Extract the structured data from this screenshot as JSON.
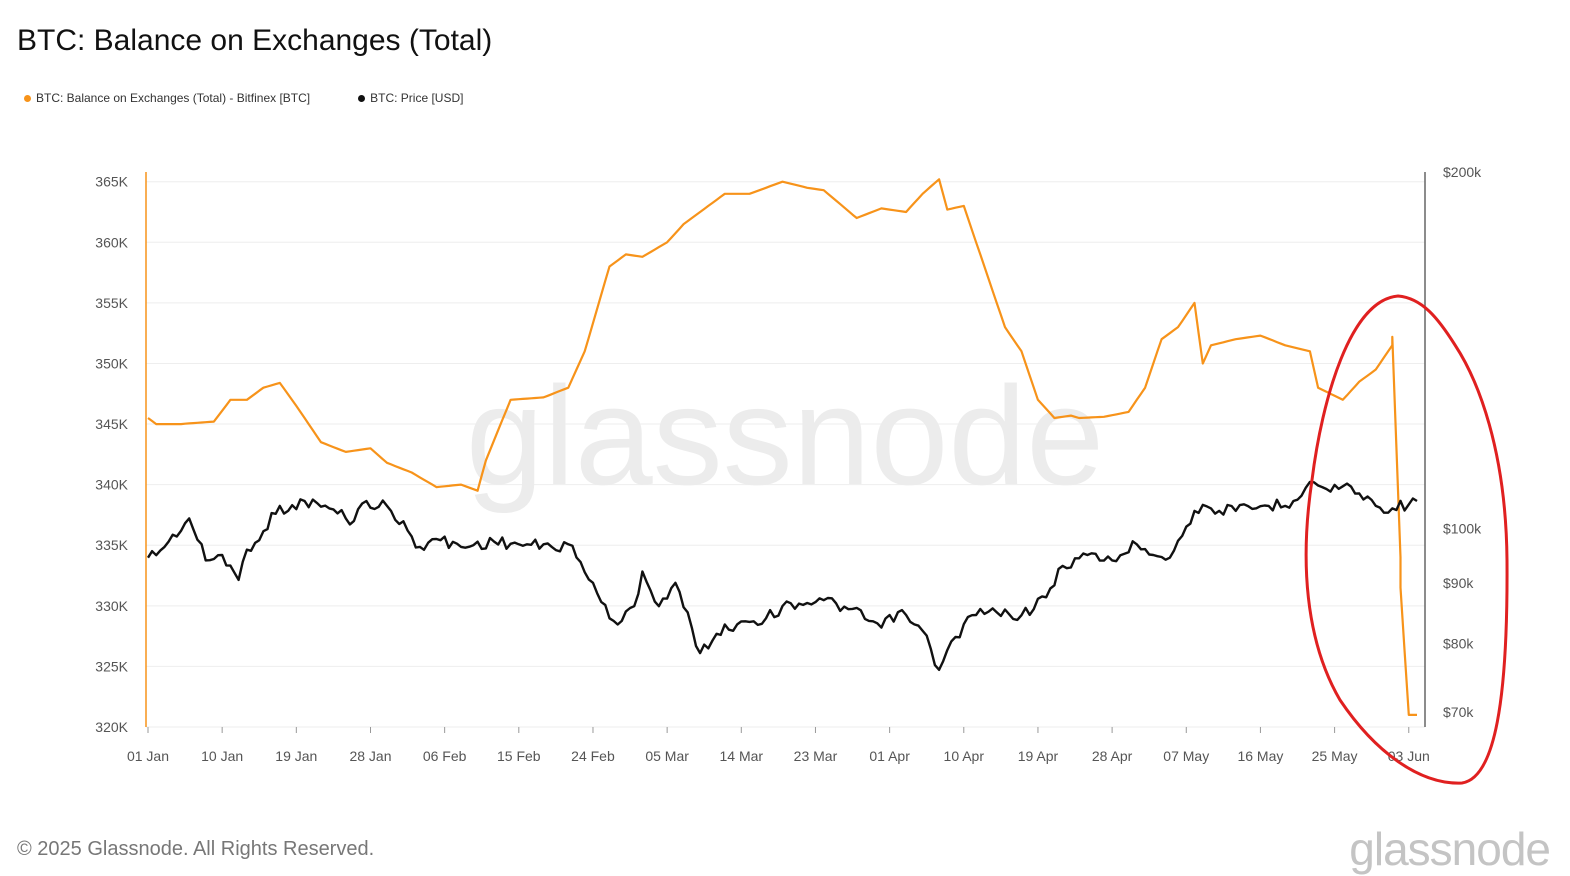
{
  "header": {
    "title": "BTC: Balance on Exchanges (Total)"
  },
  "colors": {
    "balance": "#f7931a",
    "price": "#111111",
    "annotation": "#e02020",
    "grid": "#eeeeee"
  },
  "footer": {
    "copyright": "© 2025 Glassnode. All Rights Reserved.",
    "brand": "glassnode"
  },
  "watermark": "glassnode",
  "chart_data": {
    "type": "line",
    "title": "BTC: Balance on Exchanges (Total)",
    "x_tick_labels": [
      "01 Jan",
      "10 Jan",
      "19 Jan",
      "28 Jan",
      "06 Feb",
      "15 Feb",
      "24 Feb",
      "05 Mar",
      "14 Mar",
      "23 Mar",
      "01 Apr",
      "10 Apr",
      "19 Apr",
      "28 Apr",
      "07 May",
      "16 May",
      "25 May",
      "03 Jun"
    ],
    "y_left": {
      "ticks": [
        320000,
        325000,
        330000,
        335000,
        340000,
        345000,
        350000,
        355000,
        360000,
        365000
      ],
      "tick_labels": [
        "320K",
        "325K",
        "330K",
        "335K",
        "340K",
        "345K",
        "350K",
        "355K",
        "360K",
        "365K"
      ],
      "range": [
        320000,
        365800
      ]
    },
    "y_right": {
      "scale": "log",
      "ticks": [
        70000,
        80000,
        90000,
        100000,
        200000
      ],
      "tick_labels": [
        "$70k",
        "$80k",
        "$90k",
        "$100k",
        "$200k"
      ],
      "range": [
        68000,
        200000
      ]
    },
    "legend_position": "top-left",
    "grid": true,
    "series": [
      {
        "name": "BTC: Balance on Exchanges (Total) - Bitfinex [BTC]",
        "axis": "left",
        "x": [
          "2025-01-01",
          "2025-01-02",
          "2025-01-05",
          "2025-01-09",
          "2025-01-11",
          "2025-01-13",
          "2025-01-15",
          "2025-01-17",
          "2025-01-19",
          "2025-01-22",
          "2025-01-25",
          "2025-01-28",
          "2025-01-30",
          "2025-02-02",
          "2025-02-05",
          "2025-02-08",
          "2025-02-10",
          "2025-02-11",
          "2025-02-14",
          "2025-02-18",
          "2025-02-21",
          "2025-02-23",
          "2025-02-26",
          "2025-02-28",
          "2025-03-02",
          "2025-03-05",
          "2025-03-07",
          "2025-03-10",
          "2025-03-12",
          "2025-03-15",
          "2025-03-17",
          "2025-03-19",
          "2025-03-22",
          "2025-03-24",
          "2025-03-28",
          "2025-03-31",
          "2025-04-03",
          "2025-04-05",
          "2025-04-07",
          "2025-04-08",
          "2025-04-10",
          "2025-04-12",
          "2025-04-15",
          "2025-04-17",
          "2025-04-19",
          "2025-04-21",
          "2025-04-23",
          "2025-04-24",
          "2025-04-27",
          "2025-04-30",
          "2025-05-02",
          "2025-05-04",
          "2025-05-06",
          "2025-05-08",
          "2025-05-09",
          "2025-05-10",
          "2025-05-13",
          "2025-05-16",
          "2025-05-19",
          "2025-05-22",
          "2025-05-23",
          "2025-05-26",
          "2025-05-28",
          "2025-05-30",
          "2025-06-01",
          "2025-06-01",
          "2025-06-02",
          "2025-06-02",
          "2025-06-03",
          "2025-06-04"
        ],
        "values": [
          345500,
          345000,
          345000,
          345200,
          347000,
          347000,
          348000,
          348400,
          346500,
          343500,
          342700,
          343000,
          341800,
          341000,
          339800,
          340000,
          339500,
          342000,
          347000,
          347200,
          348000,
          351000,
          358000,
          359000,
          358800,
          360000,
          361500,
          363000,
          364000,
          364000,
          364500,
          365000,
          364500,
          364300,
          362000,
          362800,
          362500,
          364000,
          365200,
          362700,
          363000,
          359000,
          353000,
          351000,
          347000,
          345500,
          345700,
          345500,
          345600,
          346000,
          348000,
          352000,
          353000,
          355000,
          350000,
          351500,
          352000,
          352300,
          351500,
          351000,
          348000,
          347000,
          348500,
          349500,
          351500,
          352200,
          334000,
          331500,
          321000,
          321000
        ]
      },
      {
        "name": "BTC: Price [USD]",
        "axis": "right",
        "x": [
          "2025-01-01",
          "2025-01-03",
          "2025-01-06",
          "2025-01-08",
          "2025-01-10",
          "2025-01-12",
          "2025-01-13",
          "2025-01-15",
          "2025-01-17",
          "2025-01-18",
          "2025-01-20",
          "2025-01-23",
          "2025-01-26",
          "2025-01-27",
          "2025-01-30",
          "2025-02-02",
          "2025-02-03",
          "2025-02-05",
          "2025-02-08",
          "2025-02-12",
          "2025-02-15",
          "2025-02-19",
          "2025-02-21",
          "2025-02-24",
          "2025-02-26",
          "2025-02-27",
          "2025-03-01",
          "2025-03-02",
          "2025-03-04",
          "2025-03-06",
          "2025-03-09",
          "2025-03-11",
          "2025-03-14",
          "2025-03-17",
          "2025-03-20",
          "2025-03-24",
          "2025-03-27",
          "2025-03-31",
          "2025-04-02",
          "2025-04-05",
          "2025-04-07",
          "2025-04-09",
          "2025-04-11",
          "2025-04-14",
          "2025-04-17",
          "2025-04-20",
          "2025-04-22",
          "2025-04-25",
          "2025-04-28",
          "2025-05-01",
          "2025-05-05",
          "2025-05-08",
          "2025-05-10",
          "2025-05-13",
          "2025-05-17",
          "2025-05-20",
          "2025-05-22",
          "2025-05-24",
          "2025-05-27",
          "2025-05-30",
          "2025-06-01",
          "2025-06-04"
        ],
        "values": [
          94500,
          96500,
          102000,
          94000,
          95000,
          90500,
          96000,
          99500,
          104500,
          103500,
          105500,
          104000,
          101500,
          105000,
          104500,
          98500,
          96500,
          98000,
          96500,
          97500,
          97000,
          96500,
          97000,
          90000,
          84000,
          83000,
          86000,
          92000,
          86000,
          90000,
          78500,
          81500,
          83500,
          84000,
          86500,
          87000,
          85500,
          82500,
          85000,
          82000,
          76000,
          81000,
          84500,
          85000,
          84500,
          87500,
          93000,
          95000,
          94000,
          97000,
          94500,
          103500,
          104000,
          103500,
          104500,
          105500,
          109500,
          108000,
          108500,
          104500,
          104000,
          105500
        ]
      }
    ],
    "annotations": [
      {
        "type": "hand-drawn-ellipse",
        "color": "#e02020",
        "around": "late May – early June"
      }
    ]
  }
}
